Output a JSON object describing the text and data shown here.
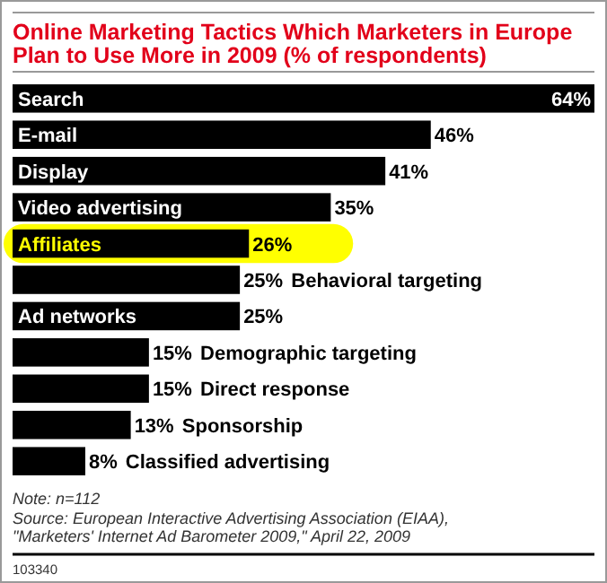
{
  "chart_data": {
    "type": "bar",
    "orientation": "horizontal",
    "title": "Online Marketing Tactics Which Marketers in Europe Plan to Use More in 2009 (% of respondents)",
    "categories": [
      "Search",
      "E-mail",
      "Display",
      "Video advertising",
      "Affiliates",
      "Behavioral targeting",
      "Ad networks",
      "Demographic targeting",
      "Direct response",
      "Sponsorship",
      "Classified advertising"
    ],
    "values": [
      64,
      46,
      41,
      35,
      26,
      25,
      25,
      15,
      15,
      13,
      8
    ],
    "value_labels": [
      "64%",
      "46%",
      "41%",
      "35%",
      "26%",
      "25%",
      "25%",
      "15%",
      "15%",
      "13%",
      "8%"
    ],
    "color": "#000000",
    "bands": [
      {
        "axis": "y",
        "from": "Affiliates",
        "to": "Affiliates",
        "color": "#ffff00"
      }
    ],
    "annotations": [
      "Note: n=112",
      "Source: European Interactive Advertising Association (EIAA), \"Marketers' Internet Ad Barometer 2009,\" April 22, 2009",
      "103340"
    ]
  }
}
